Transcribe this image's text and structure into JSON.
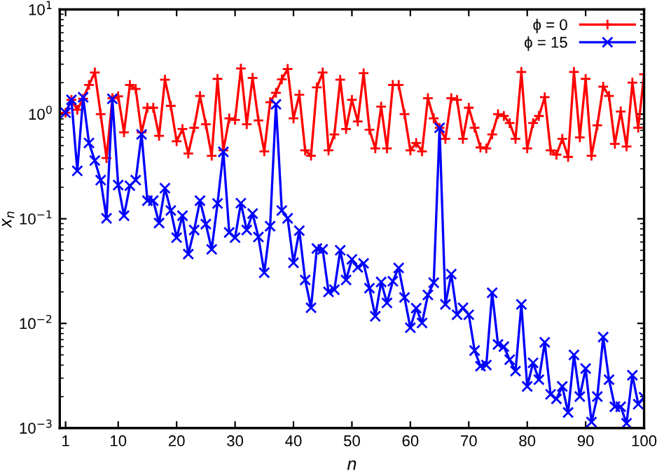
{
  "chart_data": {
    "type": "line",
    "xlabel": "n",
    "ylabel": "x$_{n}$",
    "log": "y",
    "legend": "top right",
    "xlim": [
      0,
      100
    ],
    "xticks": [
      1,
      10,
      20,
      30,
      40,
      50,
      60,
      70,
      80,
      90,
      100
    ],
    "ylim": [
      0.001,
      10
    ],
    "yticks": [
      {
        "value": 0.001,
        "label": "10$^{−3}$"
      },
      {
        "value": 0.01,
        "label": "10$^{−2}$"
      },
      {
        "value": 0.1,
        "label": "10$^{−1}$"
      },
      {
        "value": 1,
        "label": "10$^{0}$"
      },
      {
        "value": 10,
        "label": "10$^{1}$"
      }
    ],
    "x": [
      1,
      2,
      3,
      4,
      5,
      6,
      7,
      8,
      9,
      10,
      11,
      12,
      13,
      14,
      15,
      16,
      17,
      18,
      19,
      20,
      21,
      22,
      23,
      24,
      25,
      26,
      27,
      28,
      29,
      30,
      31,
      32,
      33,
      34,
      35,
      36,
      37,
      38,
      39,
      40,
      41,
      42,
      43,
      44,
      45,
      46,
      47,
      48,
      49,
      50,
      51,
      52,
      53,
      54,
      55,
      56,
      57,
      58,
      59,
      60,
      61,
      62,
      63,
      64,
      65,
      66,
      67,
      68,
      69,
      70,
      71,
      72,
      73,
      74,
      75,
      76,
      77,
      78,
      79,
      80,
      81,
      82,
      83,
      84,
      85,
      86,
      87,
      88,
      89,
      90,
      91,
      92,
      93,
      94,
      95,
      96,
      97,
      98,
      99,
      100
    ],
    "series": [
      {
        "name": "ϕ = 0",
        "color": "#ff0000",
        "marker": "plus",
        "values": [
          1.03,
          1.37,
          1.1,
          1.4,
          1.9,
          2.5,
          1.0,
          0.38,
          1.42,
          1.48,
          0.67,
          1.9,
          1.74,
          0.67,
          1.15,
          1.15,
          0.62,
          2.13,
          1.2,
          0.55,
          0.72,
          0.42,
          0.74,
          1.49,
          0.8,
          0.4,
          2.17,
          0.45,
          0.91,
          0.88,
          2.73,
          0.8,
          2.22,
          0.87,
          0.44,
          1.3,
          1.6,
          2.15,
          2.7,
          0.91,
          1.53,
          0.45,
          0.4,
          1.8,
          2.5,
          0.45,
          0.64,
          2.13,
          0.72,
          1.37,
          0.85,
          2.46,
          0.71,
          0.47,
          1.18,
          0.47,
          1.9,
          1.9,
          1.0,
          0.45,
          0.53,
          0.44,
          1.42,
          0.91,
          0.74,
          0.58,
          1.42,
          1.37,
          0.58,
          1.15,
          0.74,
          0.48,
          0.47,
          0.64,
          1.0,
          0.96,
          0.82,
          0.58,
          2.53,
          0.47,
          0.82,
          0.96,
          1.45,
          0.45,
          0.41,
          0.58,
          0.39,
          2.53,
          0.6,
          2.17,
          0.4,
          0.78,
          1.83,
          1.49,
          0.52,
          1.06,
          0.49,
          2.0,
          0.74,
          2.4
        ]
      },
      {
        "name": "ϕ = 15",
        "color": "#0000ff",
        "marker": "cross",
        "values": [
          1.03,
          1.37,
          0.287,
          1.45,
          0.53,
          0.36,
          0.234,
          0.101,
          1.4,
          0.21,
          0.107,
          0.207,
          0.234,
          0.64,
          0.149,
          0.149,
          0.091,
          0.196,
          0.12,
          0.066,
          0.107,
          0.046,
          0.078,
          0.149,
          0.089,
          0.051,
          0.14,
          0.436,
          0.074,
          0.066,
          0.141,
          0.078,
          0.112,
          0.067,
          0.0305,
          0.085,
          1.24,
          0.12,
          0.101,
          0.038,
          0.077,
          0.026,
          0.0141,
          0.052,
          0.051,
          0.02,
          0.021,
          0.05,
          0.026,
          0.041,
          0.0344,
          0.0375,
          0.0217,
          0.0117,
          0.0249,
          0.0157,
          0.0253,
          0.0339,
          0.0177,
          0.0091,
          0.014,
          0.0101,
          0.0187,
          0.0245,
          0.74,
          0.0152,
          0.0296,
          0.0121,
          0.0141,
          0.0121,
          0.0055,
          0.0039,
          0.004,
          0.0196,
          0.0063,
          0.006,
          0.0045,
          0.0035,
          0.0152,
          0.0025,
          0.0042,
          0.0029,
          0.0066,
          0.0021,
          0.0019,
          0.0025,
          0.00141,
          0.005,
          0.002,
          0.0037,
          0.00114,
          0.002,
          0.0074,
          0.0029,
          0.0016,
          0.0016,
          0.00111,
          0.0032,
          0.00169,
          0.00197
        ]
      }
    ]
  }
}
